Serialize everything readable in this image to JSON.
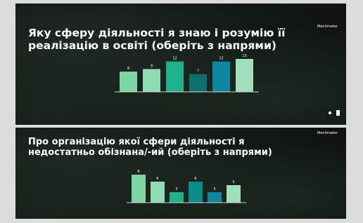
{
  "brand": "Mentimeter",
  "chart_data": [
    {
      "type": "bar",
      "title": "Яку сферу діяльності я знаю і розумію її реалізацію в освіті (оберіть з напрями)",
      "values": [
        8,
        9,
        12,
        7,
        12,
        13
      ],
      "colors": [
        "#7fd4a6",
        "#8fdcb2",
        "#1fb08c",
        "#0d6f72",
        "#0b88a0",
        "#9fe0ba"
      ]
    },
    {
      "type": "bar",
      "title": "Про організацію якої сфери діяльності я недостатньо обізнана/-ий (оберіть з напрями)",
      "values": [
        8,
        6,
        3,
        6,
        3,
        5
      ],
      "colors": [
        "#7fd4a6",
        "#8fdcb2",
        "#1fb08c",
        "#0d8a8a",
        "#0b88a0",
        "#9fe0ba"
      ]
    }
  ]
}
